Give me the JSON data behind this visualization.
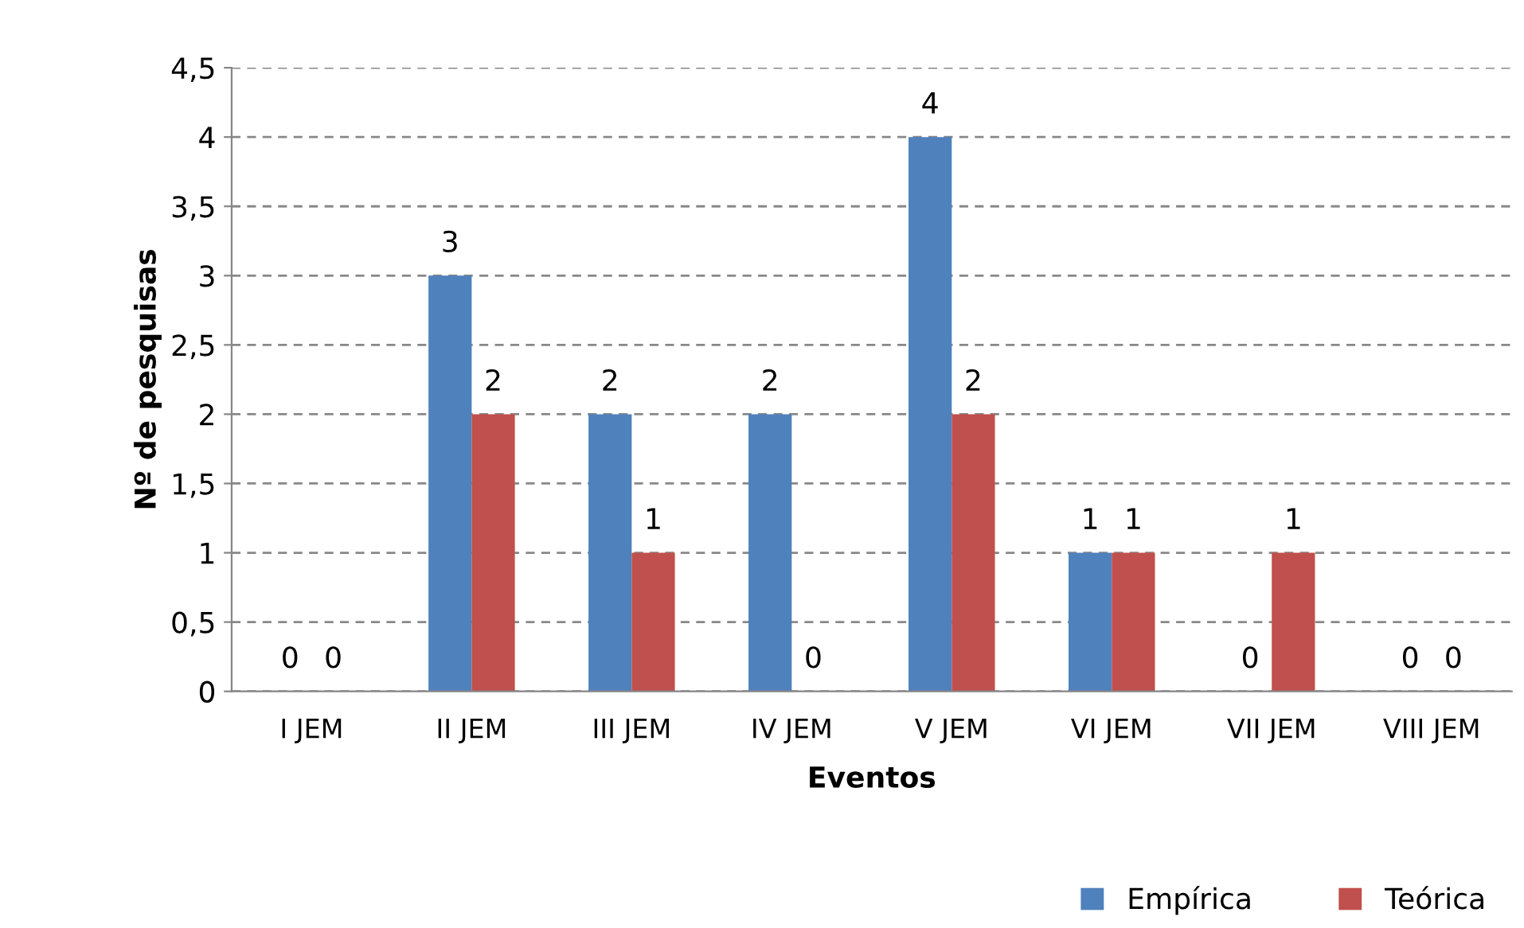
{
  "chart_data": {
    "type": "bar",
    "xlabel": "Eventos",
    "ylabel": "Nº de pesquisas",
    "categories": [
      "I JEM",
      "II JEM",
      "III JEM",
      "IV JEM",
      "V JEM",
      "VI JEM",
      "VII JEM",
      "VIII JEM"
    ],
    "series": [
      {
        "name": "Empírica",
        "color": "#4f81bd",
        "values": [
          0,
          3,
          2,
          2,
          4,
          1,
          0,
          0
        ]
      },
      {
        "name": "Teórica",
        "color": "#c0504d",
        "values": [
          0,
          2,
          1,
          0,
          2,
          1,
          1,
          0
        ]
      }
    ],
    "ylim": [
      0,
      4.5
    ],
    "yticks": [
      0,
      {
        "value": 0.5,
        "label": "0,5"
      },
      1,
      {
        "value": 1.5,
        "label": "1,5"
      },
      2,
      {
        "value": 2.5,
        "label": "2,5"
      },
      3,
      {
        "value": 3.5,
        "label": "3,5"
      },
      4,
      {
        "value": 4.5,
        "label": "4,5"
      }
    ],
    "grid": "y",
    "legend": "bottom right",
    "data_labels": true
  }
}
